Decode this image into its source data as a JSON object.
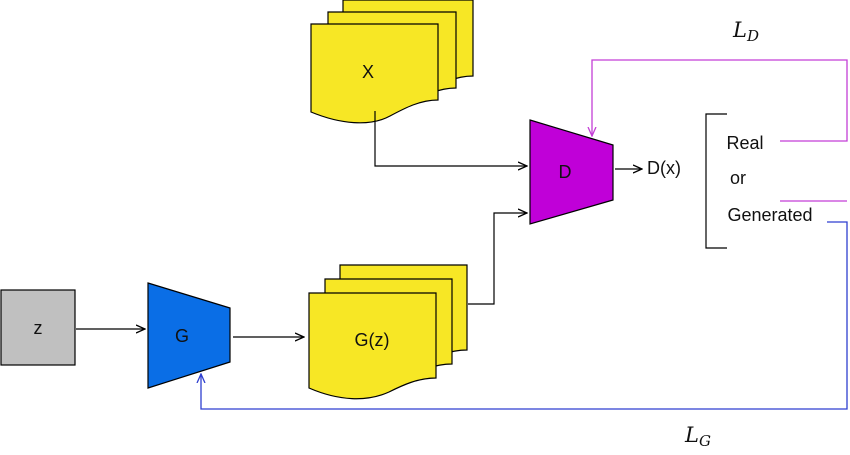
{
  "nodes": {
    "z": "z",
    "generator": "G",
    "discriminator": "D",
    "real_data": "X",
    "generated_data": "G(z)",
    "discriminator_output": "D(x)"
  },
  "decision": {
    "real": "Real",
    "or": "or",
    "generated": "Generated"
  },
  "losses": {
    "discriminator": {
      "symbol": "L",
      "subscript": "D"
    },
    "generator": {
      "symbol": "L",
      "subscript": "G"
    }
  },
  "colors": {
    "z_box": "#c0c0c0",
    "generator": "#0a6ee6",
    "discriminator": "#c000d8",
    "data_stack": "#f7e725",
    "discriminator_loss_path": "#c43fd6",
    "generator_loss_path": "#2e3fd0",
    "line": "#000000"
  }
}
